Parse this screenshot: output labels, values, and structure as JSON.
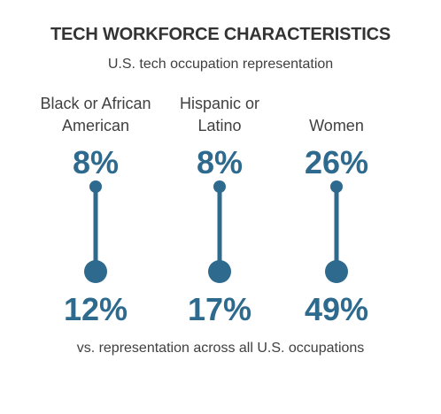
{
  "title": "TECH WORKFORCE CHARACTERISTICS",
  "subtitle": "U.S. tech occupation representation",
  "footnote": "vs. representation across all U.S. occupations",
  "colors": {
    "accent": "#2e6a8e",
    "text": "#404040"
  },
  "chart_data": {
    "type": "dumbbell",
    "title": "TECH WORKFORCE CHARACTERISTICS",
    "subtitle": "U.S. tech occupation representation",
    "categories": [
      [
        "Black or African",
        "American"
      ],
      [
        "Hispanic or",
        "Latino"
      ],
      [
        "Women"
      ]
    ],
    "series": [
      {
        "name": "U.S. tech occupation representation",
        "values": [
          8,
          8,
          26
        ],
        "labels": [
          "8%",
          "8%",
          "26%"
        ]
      },
      {
        "name": "vs. representation across all U.S. occupations",
        "values": [
          12,
          17,
          49
        ],
        "labels": [
          "12%",
          "17%",
          "49%"
        ]
      }
    ],
    "unit": "%"
  }
}
